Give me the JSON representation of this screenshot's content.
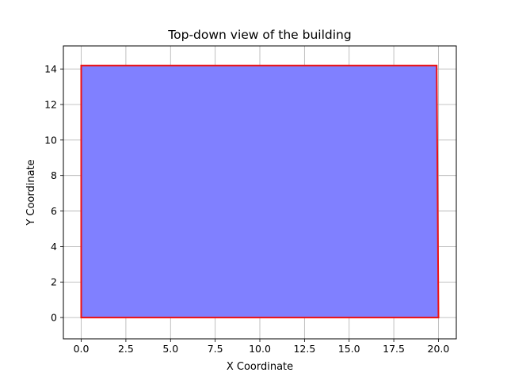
{
  "chart_data": {
    "type": "area",
    "title": "Top-down view of the building",
    "xlabel": "X Coordinate",
    "ylabel": "Y Coordinate",
    "xlim": [
      -1.0,
      21.0
    ],
    "ylim": [
      -1.2,
      15.3
    ],
    "xticks": [
      0,
      2.5,
      5,
      7.5,
      10,
      12.5,
      15,
      17.5,
      20
    ],
    "xtick_labels": [
      "0.0",
      "2.5",
      "5.0",
      "7.5",
      "10.0",
      "12.5",
      "15.0",
      "17.5",
      "20.0"
    ],
    "yticks": [
      0,
      2,
      4,
      6,
      8,
      10,
      12,
      14
    ],
    "ytick_labels": [
      "0",
      "2",
      "4",
      "6",
      "8",
      "10",
      "12",
      "14"
    ],
    "grid": true,
    "polygon": [
      {
        "x": 0,
        "y": 0
      },
      {
        "x": 20.0,
        "y": 0
      },
      {
        "x": 19.9,
        "y": 14.2
      },
      {
        "x": 0,
        "y": 14.2
      }
    ],
    "fill_color": "#8080ff",
    "edge_color": "#ee1111"
  }
}
